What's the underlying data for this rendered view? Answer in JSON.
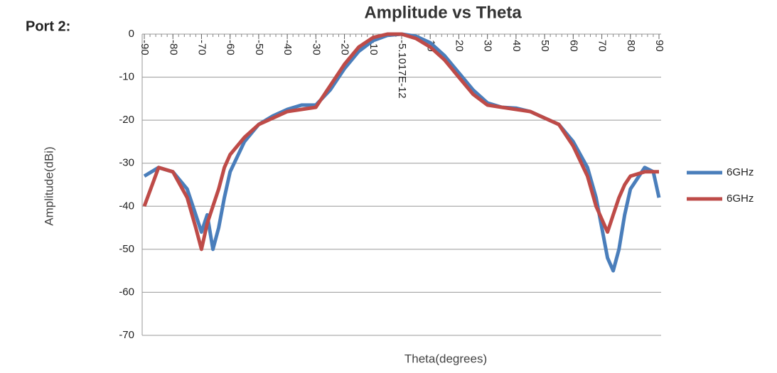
{
  "chart_data": {
    "type": "line",
    "panel_label": "Port 2:",
    "title": "Amplitude vs Theta",
    "x_label": "Theta(degrees)",
    "y_label": "Amplitude(dBi)",
    "x": [
      -90,
      -85,
      -80,
      -75,
      -72,
      -70,
      -68,
      -66,
      -64,
      -62,
      -60,
      -55,
      -50,
      -45,
      -40,
      -35,
      -30,
      -25,
      -20,
      -15,
      -10,
      -5,
      0,
      5,
      10,
      15,
      20,
      25,
      30,
      35,
      40,
      45,
      50,
      55,
      60,
      65,
      68,
      70,
      72,
      74,
      76,
      78,
      80,
      85,
      88,
      90
    ],
    "series": [
      {
        "name": "6GHz",
        "color": "#4a7ebb",
        "values": [
          -33,
          -31,
          -32,
          -36,
          -42,
          -46,
          -42,
          -50,
          -45,
          -38,
          -32,
          -25,
          -21,
          -19,
          -17.5,
          -16.5,
          -16.5,
          -13,
          -8,
          -4,
          -1.5,
          -0.3,
          0,
          -0.5,
          -2,
          -5,
          -9,
          -13,
          -16,
          -17,
          -17.2,
          -18,
          -19.5,
          -21,
          -25,
          -31,
          -38,
          -45,
          -52,
          -55,
          -50,
          -42,
          -36,
          -31,
          -32,
          -38
        ]
      },
      {
        "name": "6GHz",
        "color": "#be4b48",
        "values": [
          -40,
          -31,
          -32,
          -38,
          -45,
          -50,
          -44,
          -40,
          -36,
          -31,
          -28,
          -24,
          -21,
          -19.5,
          -18,
          -17.5,
          -17,
          -12,
          -7,
          -3,
          -0.8,
          0,
          0,
          -1,
          -3,
          -6,
          -10,
          -14,
          -16.5,
          -17,
          -17.5,
          -18,
          -19.5,
          -21,
          -26,
          -33,
          -40,
          -43,
          -46,
          -42,
          -38,
          -35,
          -33,
          -32,
          -32,
          -32
        ]
      }
    ],
    "xlim": [
      -90,
      90
    ],
    "xticks": [
      -90,
      -80,
      -70,
      -60,
      -50,
      -40,
      -30,
      -20,
      -10,
      {
        "value": 0,
        "label": "-5.1017E-12"
      },
      10,
      20,
      30,
      40,
      50,
      60,
      70,
      80,
      90
    ],
    "ylim": [
      -70,
      0
    ],
    "yticks": [
      0,
      -10,
      -20,
      -30,
      -40,
      -50,
      -60,
      -70
    ],
    "grid": true,
    "legend": "right"
  }
}
